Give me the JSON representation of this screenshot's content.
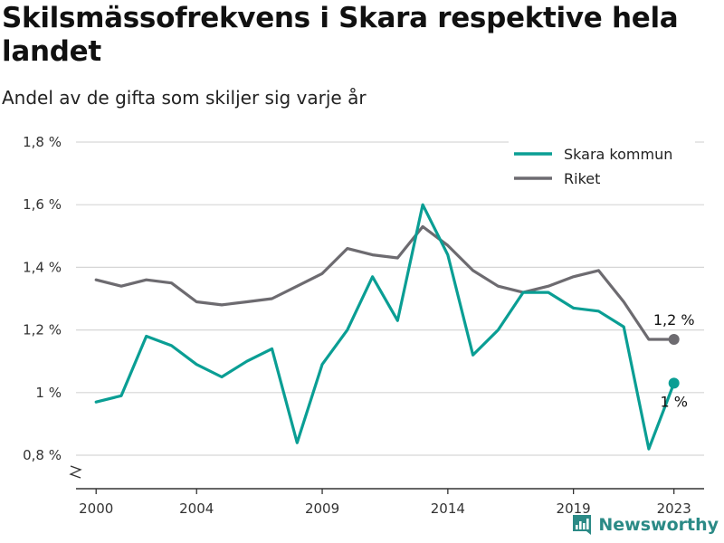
{
  "header": {
    "title": "Skilsmässofrekvens i Skara respektive hela landet",
    "subtitle": "Andel av de gifta som skiljer sig varje år"
  },
  "brand": {
    "name": "Newsworthy",
    "icon": "bar-chart-logo-icon"
  },
  "colors": {
    "skara": "#0a9e94",
    "riket": "#6d6b70",
    "grid": "#d6d6d6",
    "axis": "#333333"
  },
  "chart_data": {
    "type": "line",
    "title": "Skilsmässofrekvens i Skara respektive hela landet",
    "subtitle": "Andel av de gifta som skiljer sig varje år",
    "xlabel": "",
    "ylabel": "",
    "x": [
      2000,
      2001,
      2002,
      2003,
      2004,
      2005,
      2006,
      2007,
      2008,
      2009,
      2010,
      2011,
      2012,
      2013,
      2014,
      2015,
      2016,
      2017,
      2018,
      2019,
      2020,
      2021,
      2022,
      2023
    ],
    "series": [
      {
        "name": "Skara kommun",
        "color": "#0a9e94",
        "values": [
          0.97,
          0.99,
          1.18,
          1.15,
          1.09,
          1.05,
          1.1,
          1.14,
          0.84,
          1.09,
          1.2,
          1.37,
          1.23,
          1.6,
          1.44,
          1.12,
          1.2,
          1.32,
          1.32,
          1.27,
          1.26,
          1.21,
          0.82,
          1.03
        ],
        "end_label": "1 %"
      },
      {
        "name": "Riket",
        "color": "#6d6b70",
        "values": [
          1.36,
          1.34,
          1.36,
          1.35,
          1.29,
          1.28,
          1.29,
          1.3,
          1.34,
          1.38,
          1.46,
          1.44,
          1.43,
          1.53,
          1.47,
          1.39,
          1.34,
          1.32,
          1.34,
          1.37,
          1.39,
          1.29,
          1.17,
          1.17
        ],
        "end_label": "1,2 %"
      }
    ],
    "ylim": [
      0.7,
      1.8
    ],
    "yticks": [
      0.8,
      1.0,
      1.2,
      1.4,
      1.6,
      1.8
    ],
    "ytick_labels": [
      "0,8 %",
      "1 %",
      "1,2 %",
      "1,4 %",
      "1,6 %",
      "1,8 %"
    ],
    "xticks": [
      2000,
      2004,
      2009,
      2014,
      2019,
      2023
    ],
    "xtick_labels": [
      "2000",
      "2004",
      "2009",
      "2014",
      "2019",
      "2023"
    ],
    "grid": true,
    "legend": "top-right",
    "y_axis_break": true
  }
}
